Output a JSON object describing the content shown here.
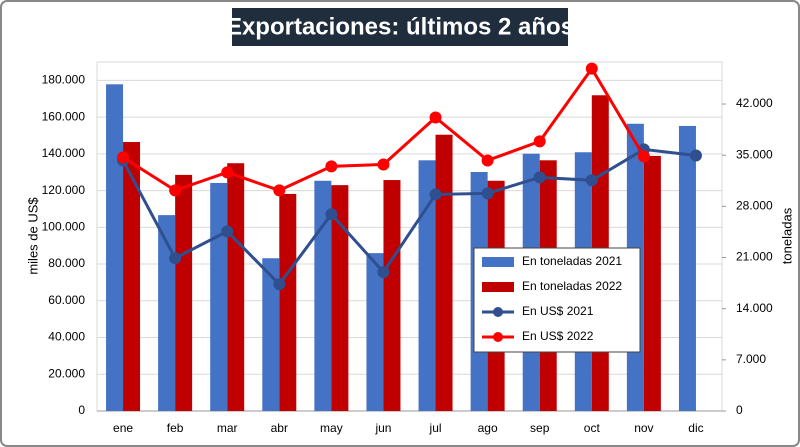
{
  "chart_data": {
    "type": "combo",
    "title": "Exportaciones: últimos 2 años",
    "y_label": "miles de US$",
    "y2_label": "toneladas",
    "categories": [
      "ene",
      "feb",
      "mar",
      "abr",
      "may",
      "jun",
      "jul",
      "ago",
      "sep",
      "oct",
      "nov",
      "dic"
    ],
    "series": [
      {
        "name": "En toneladas 2021",
        "type": "bar",
        "axis": "y2",
        "color": "#4472c4",
        "values": [
          44700,
          26800,
          31200,
          20900,
          31500,
          21600,
          34300,
          32700,
          35200,
          35400,
          39300,
          39000
        ]
      },
      {
        "name": "En toneladas 2022",
        "type": "bar",
        "axis": "y2",
        "color": "#c00000",
        "values": [
          36800,
          32300,
          33900,
          29700,
          30900,
          31600,
          37800,
          31500,
          34300,
          43200,
          34900,
          null
        ]
      },
      {
        "name": "En US$ 2021",
        "type": "line",
        "axis": "y",
        "color": "#2f4f8f",
        "values": [
          136400,
          83200,
          97800,
          69000,
          107100,
          75600,
          117900,
          118500,
          127200,
          125600,
          142400,
          139100
        ]
      },
      {
        "name": "En US$ 2022",
        "type": "line",
        "axis": "y",
        "color": "#ff0000",
        "values": [
          138100,
          120100,
          129900,
          120100,
          133200,
          134200,
          159800,
          136400,
          146800,
          186400,
          138600,
          null
        ]
      }
    ],
    "ylim": [
      0,
      190000
    ],
    "yticks": [
      0,
      {
        "value": 20000,
        "label": "20.000"
      },
      {
        "value": 40000,
        "label": "40.000"
      },
      {
        "value": 60000,
        "label": "60.000"
      },
      {
        "value": 80000,
        "label": "80.000"
      },
      {
        "value": 100000,
        "label": "100.000"
      },
      {
        "value": 120000,
        "label": "120.000"
      },
      {
        "value": 140000,
        "label": "140.000"
      },
      {
        "value": 160000,
        "label": "160.000"
      },
      {
        "value": 180000,
        "label": "180.000"
      }
    ],
    "y2lim": [
      0,
      47750
    ],
    "y2ticks": [
      0,
      {
        "value": 7000,
        "label": "7.000"
      },
      {
        "value": 14000,
        "label": "14.000"
      },
      {
        "value": 21000,
        "label": "21.000"
      },
      {
        "value": 28000,
        "label": "28.000"
      },
      {
        "value": 35000,
        "label": "35.000"
      },
      {
        "value": 42000,
        "label": "42.000"
      }
    ],
    "grid": true,
    "legend": "right"
  }
}
